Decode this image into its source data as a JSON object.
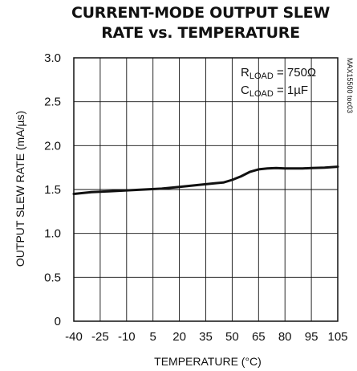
{
  "chart_data": {
    "type": "line",
    "title_line1": "CURRENT-MODE OUTPUT SLEW",
    "title_line2": "RATE vs. TEMPERATURE",
    "xlabel": "TEMPERATURE (°C)",
    "ylabel": "OUTPUT SLEW RATE (mA/µs)",
    "xlim": [
      -40,
      105
    ],
    "ylim": [
      0,
      3.0
    ],
    "x_ticks": [
      -40,
      -25,
      -10,
      5,
      20,
      35,
      50,
      65,
      80,
      95,
      105
    ],
    "x_tick_labels": [
      "-40",
      "-25",
      "-10",
      "5",
      "20",
      "35",
      "50",
      "65",
      "80",
      "95",
      "105"
    ],
    "y_ticks": [
      0,
      0.5,
      1.0,
      1.5,
      2.0,
      2.5,
      3.0
    ],
    "y_tick_labels": [
      "0",
      "0.5",
      "1.0",
      "1.5",
      "2.0",
      "2.5",
      "3.0"
    ],
    "grid": true,
    "series": [
      {
        "x": [
          -40,
          -30,
          -20,
          -10,
          0,
          10,
          20,
          30,
          40,
          45,
          50,
          55,
          60,
          65,
          70,
          75,
          80,
          85,
          90,
          95,
          100,
          105
        ],
        "y": [
          1.45,
          1.47,
          1.48,
          1.49,
          1.5,
          1.51,
          1.53,
          1.55,
          1.57,
          1.58,
          1.61,
          1.65,
          1.7,
          1.73,
          1.74,
          1.745,
          1.74,
          1.74,
          1.74,
          1.745,
          1.75,
          1.76
        ]
      }
    ],
    "annotations": {
      "rload_main": "R",
      "rload_sub": "LOAD",
      "rload_value": " = 750Ω",
      "cload_main": "C",
      "cload_sub": "LOAD",
      "cload_value": " = 1µF"
    },
    "side_code": "MAX15500 toc03",
    "line_color": "#111111"
  }
}
